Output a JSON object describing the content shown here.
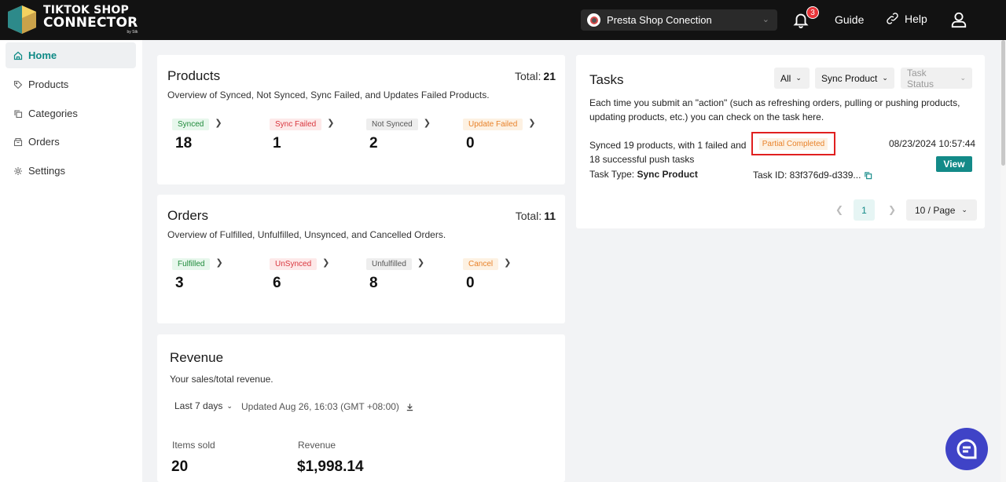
{
  "header": {
    "logo_line1": "TIKTOK SHOP",
    "logo_line2": "CONNECTOR",
    "logo_by": "by Stk",
    "shop_name": "Presta Shop Conection",
    "notification_count": "3",
    "guide_label": "Guide",
    "help_label": "Help"
  },
  "sidebar": {
    "items": [
      {
        "label": "Home",
        "icon": "home-icon"
      },
      {
        "label": "Products",
        "icon": "tag-icon"
      },
      {
        "label": "Categories",
        "icon": "copy-icon"
      },
      {
        "label": "Orders",
        "icon": "box-icon"
      },
      {
        "label": "Settings",
        "icon": "gear-icon"
      }
    ]
  },
  "products": {
    "title": "Products",
    "subtitle": "Overview of Synced, Not Synced, Sync Failed, and Updates Failed Products.",
    "total_label": "Total:",
    "total_value": "21",
    "stats": [
      {
        "label": "Synced",
        "value": "18"
      },
      {
        "label": "Sync Failed",
        "value": "1"
      },
      {
        "label": "Not Synced",
        "value": "2"
      },
      {
        "label": "Update Failed",
        "value": "0"
      }
    ]
  },
  "orders": {
    "title": "Orders",
    "subtitle": "Overview of Fulfilled, Unfulfilled, Unsynced, and Cancelled Orders.",
    "total_label": "Total:",
    "total_value": "11",
    "stats": [
      {
        "label": "Fulfilled",
        "value": "3"
      },
      {
        "label": "UnSynced",
        "value": "6"
      },
      {
        "label": "Unfulfilled",
        "value": "8"
      },
      {
        "label": "Cancel",
        "value": "0"
      }
    ]
  },
  "revenue": {
    "title": "Revenue",
    "subtitle": "Your sales/total revenue.",
    "range": "Last 7 days",
    "updated": "Updated Aug 26, 16:03 (GMT +08:00)",
    "items_sold_label": "Items sold",
    "items_sold_value": "20",
    "revenue_label": "Revenue",
    "revenue_value": "$1,998.14"
  },
  "tasks": {
    "title": "Tasks",
    "filter_all": "All",
    "filter_type": "Sync Product",
    "filter_status": "Task Status",
    "description": "Each time you submit an \"action\" (such as refreshing orders, pulling or pushing products, updating products, etc.) you can check on the task here.",
    "item": {
      "message": "Synced 19 products, with 1 failed and 18 successful push tasks",
      "status": "Partial Completed",
      "date": "08/23/2024 10:57:44",
      "view_label": "View",
      "type_label": "Task Type:",
      "type_value": "Sync Product",
      "id_label": "Task ID: 83f376d9-d339..."
    },
    "pagination": {
      "current_page": "1",
      "page_size": "10 / Page"
    }
  },
  "colors": {
    "accent": "#138a88",
    "topbar": "#121212",
    "status_red": "#e02020",
    "chat": "#3f43c7"
  }
}
